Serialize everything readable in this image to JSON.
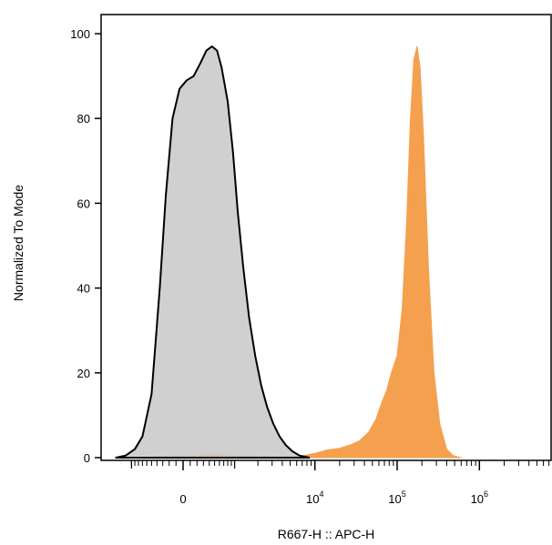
{
  "chart_data": {
    "type": "area",
    "xlabel": "R667-H :: APC-H",
    "ylabel": "Normalized To Mode",
    "x_scale": "biexponential",
    "ylim": [
      0,
      100
    ],
    "y_ticks": [
      "0",
      "20",
      "40",
      "60",
      "80",
      "100"
    ],
    "x_ticks": [
      {
        "value": 0,
        "base": "0",
        "exp": ""
      },
      {
        "value": 10000,
        "base": "10",
        "exp": "4"
      },
      {
        "value": 100000,
        "base": "10",
        "exp": "5"
      },
      {
        "value": 1000000,
        "base": "10",
        "exp": "6"
      }
    ],
    "grid": false,
    "legend": "none",
    "series": [
      {
        "color": "#c8c8c8",
        "stroke": "#000000",
        "points": [
          [
            -1600,
            0
          ],
          [
            -1200,
            0.5
          ],
          [
            -900,
            2
          ],
          [
            -700,
            5
          ],
          [
            -500,
            15
          ],
          [
            -350,
            40
          ],
          [
            -250,
            62
          ],
          [
            -150,
            80
          ],
          [
            -50,
            87
          ],
          [
            50,
            89
          ],
          [
            150,
            90
          ],
          [
            250,
            93
          ],
          [
            350,
            96
          ],
          [
            450,
            97
          ],
          [
            550,
            96
          ],
          [
            650,
            92
          ],
          [
            800,
            84
          ],
          [
            950,
            72
          ],
          [
            1100,
            58
          ],
          [
            1300,
            45
          ],
          [
            1550,
            33
          ],
          [
            1850,
            24
          ],
          [
            2200,
            17
          ],
          [
            2600,
            12
          ],
          [
            3100,
            8
          ],
          [
            3700,
            5
          ],
          [
            4400,
            3
          ],
          [
            5300,
            1.5
          ],
          [
            6500,
            0.5
          ],
          [
            8500,
            0
          ]
        ]
      },
      {
        "color": "#f5a04f",
        "stroke": "#f5a04f",
        "points": [
          [
            -900,
            0
          ],
          [
            -300,
            0.3
          ],
          [
            200,
            0.5
          ],
          [
            500,
            0.8
          ],
          [
            800,
            0.5
          ],
          [
            2000,
            0.3
          ],
          [
            4000,
            0.2
          ],
          [
            7000,
            0.4
          ],
          [
            10000,
            1
          ],
          [
            14000,
            1.8
          ],
          [
            20000,
            2.2
          ],
          [
            27000,
            3
          ],
          [
            35000,
            4
          ],
          [
            45000,
            6
          ],
          [
            55000,
            9
          ],
          [
            65000,
            13
          ],
          [
            75000,
            16
          ],
          [
            85000,
            20
          ],
          [
            100000,
            24
          ],
          [
            115000,
            35
          ],
          [
            130000,
            55
          ],
          [
            145000,
            80
          ],
          [
            160000,
            94
          ],
          [
            175000,
            97
          ],
          [
            190000,
            92
          ],
          [
            210000,
            75
          ],
          [
            240000,
            45
          ],
          [
            280000,
            20
          ],
          [
            330000,
            8
          ],
          [
            400000,
            2
          ],
          [
            480000,
            0.5
          ],
          [
            600000,
            0
          ]
        ]
      }
    ]
  }
}
